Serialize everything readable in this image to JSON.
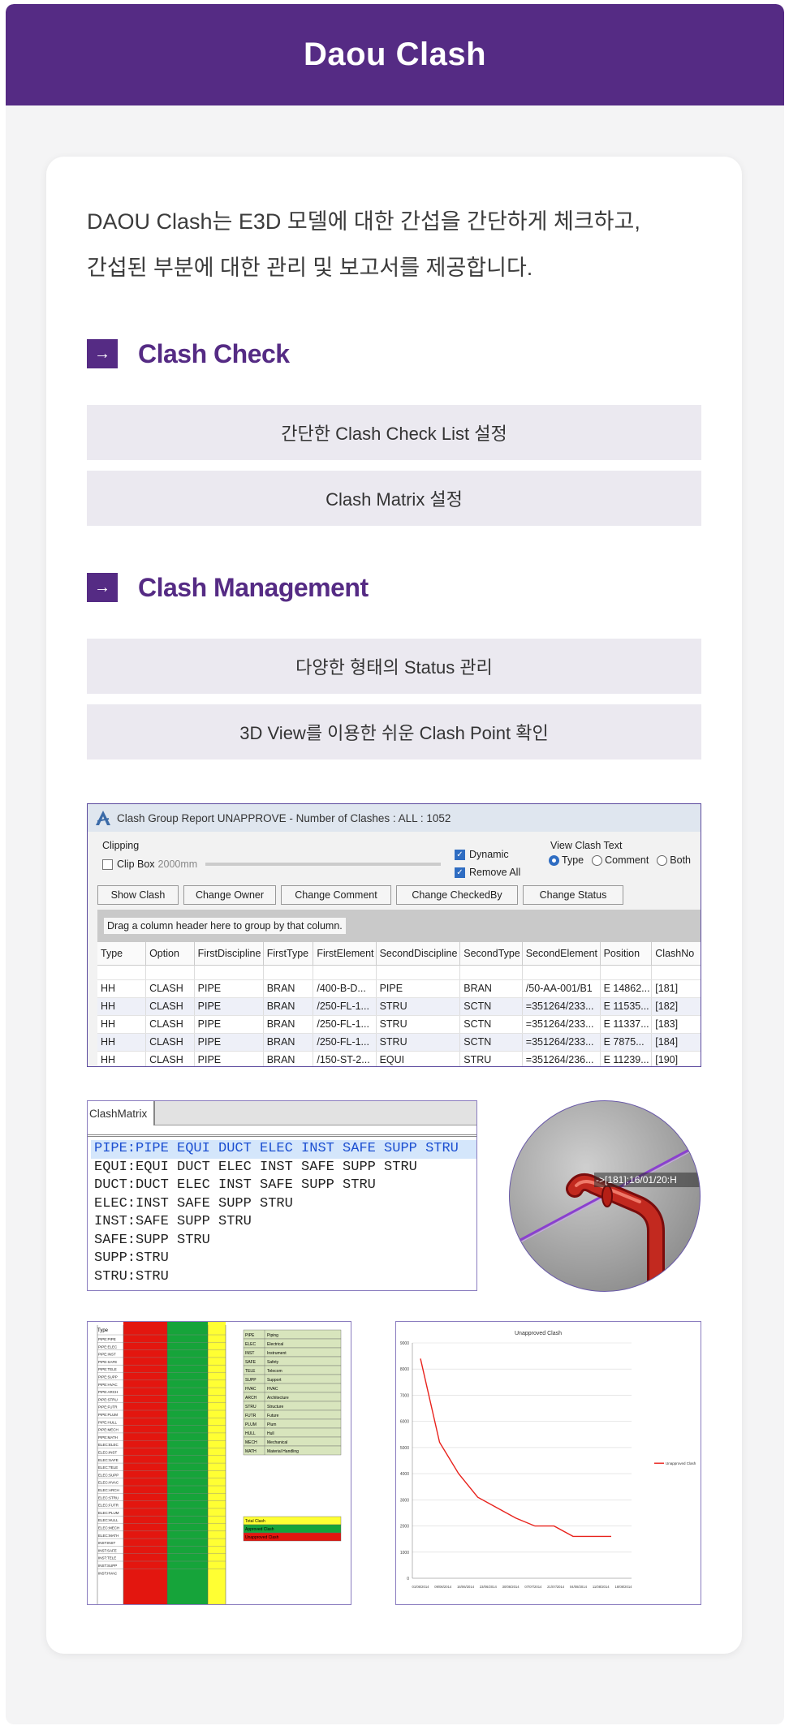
{
  "header": {
    "title": "Daou Clash"
  },
  "intro": {
    "line1": "DAOU Clash는 E3D 모델에 대한 간섭을 간단하게 체크하고,",
    "line2": "간섭된 부분에 대한 관리 및 보고서를 제공합니다."
  },
  "sections": [
    {
      "title": "Clash Check",
      "items": [
        "간단한 Clash Check List 설정",
        "Clash Matrix 설정"
      ]
    },
    {
      "title": "Clash Management",
      "items": [
        "다양한 형태의 Status 관리",
        "3D View를 이용한 쉬운 Clash Point 확인"
      ]
    }
  ],
  "arrow_icon": "→",
  "report": {
    "title": "Clash Group Report UNAPPROVE - Number of Clashes : ALL : 1052",
    "clipping_label": "Clipping",
    "clipbox_label": "Clip Box",
    "clipbox_value": "2000mm",
    "dynamic_label": "Dynamic",
    "remove_all_label": "Remove All",
    "view_clash_text_label": "View Clash Text",
    "radio_type": "Type",
    "radio_comment": "Comment",
    "radio_both": "Both",
    "buttons": [
      "Show Clash",
      "Change Owner",
      "Change Comment",
      "Change CheckedBy",
      "Change Status"
    ],
    "drag_hint": "Drag a column header here to group by that column.",
    "columns": [
      "Type",
      "Option",
      "FirstDiscipline",
      "FirstType",
      "FirstElement",
      "SecondDiscipline",
      "SecondType",
      "SecondElement",
      "Position",
      "ClashNo"
    ],
    "rows": [
      [
        "HH",
        "CLASH",
        "PIPE",
        "BRAN",
        "/400-B-D...",
        "PIPE",
        "BRAN",
        "/50-AA-001/B1",
        "E 14862...",
        "[181]"
      ],
      [
        "HH",
        "CLASH",
        "PIPE",
        "BRAN",
        "/250-FL-1...",
        "STRU",
        "SCTN",
        "=351264/233...",
        "E 11535...",
        "[182]"
      ],
      [
        "HH",
        "CLASH",
        "PIPE",
        "BRAN",
        "/250-FL-1...",
        "STRU",
        "SCTN",
        "=351264/233...",
        "E 11337...",
        "[183]"
      ],
      [
        "HH",
        "CLASH",
        "PIPE",
        "BRAN",
        "/250-FL-1...",
        "STRU",
        "SCTN",
        "=351264/233...",
        "E 7875...",
        "[184]"
      ],
      [
        "HH",
        "CLASH",
        "PIPE",
        "BRAN",
        "/150-ST-2...",
        "EQUI",
        "STRU",
        "=351264/236...",
        "E 11239...",
        "[190]"
      ]
    ]
  },
  "matrix": {
    "tab": "ClashMatrix",
    "lines": [
      "PIPE:PIPE EQUI DUCT ELEC INST SAFE SUPP STRU",
      "EQUI:EQUI DUCT ELEC INST SAFE SUPP STRU",
      "DUCT:DUCT ELEC INST SAFE SUPP STRU",
      "ELEC:INST SAFE SUPP STRU",
      "INST:SAFE SUPP STRU",
      "SAFE:SUPP STRU",
      "SUPP:STRU",
      "STRU:STRU"
    ]
  },
  "zoom": {
    "label": "->[181]:16/01/20:H"
  },
  "sheet": {
    "type_header": "Type",
    "rows": [
      "PIPE:PIPE",
      "PIPE:ELEC",
      "PIPE:INST",
      "PIPE:SAFE",
      "PIPE:TELE",
      "PIPE:SUPP",
      "PIPE:HVAC",
      "PIPE:ARCH",
      "PIPE:STRU",
      "PIPE:FUTR",
      "PIPE:PLUM",
      "PIPE:HULL",
      "PIPE:MECH",
      "PIPE:MATH",
      "ELEC:ELEC",
      "ELEC:INST",
      "ELEC:SAFE",
      "ELEC:TELE",
      "ELEC:SUPP",
      "ELEC:HVAC",
      "ELEC:ARCH",
      "ELEC:STRU",
      "ELEC:FUTR",
      "ELEC:PLUM",
      "ELEC:HULL",
      "ELEC:MECH",
      "ELEC:MATH",
      "INST:INST",
      "INST:SAFE",
      "INST:TELE",
      "INST:SUPP",
      "INST:HVAC"
    ],
    "legend": [
      [
        "PIPE",
        "Piping"
      ],
      [
        "ELEC",
        "Electrical"
      ],
      [
        "INST",
        "Instrument"
      ],
      [
        "SAFE",
        "Safety"
      ],
      [
        "TELE",
        "Telecom"
      ],
      [
        "SUPP",
        "Support"
      ],
      [
        "HVAC",
        "HVAC"
      ],
      [
        "ARCH",
        "Architecture"
      ],
      [
        "STRU",
        "Structure"
      ],
      [
        "FUTR",
        "Future"
      ],
      [
        "PLUM",
        "Plum"
      ],
      [
        "HULL",
        "Hull"
      ],
      [
        "MECH",
        "Mechanical"
      ],
      [
        "MATH",
        "Material Handling"
      ]
    ],
    "totals": [
      "Total Clash",
      "Approved Clash",
      "Unapproved Clash"
    ],
    "colors": {
      "red": "#e3160f",
      "green": "#16a43a",
      "yellow": "#ffff33",
      "legend": "#d8e5bd"
    }
  },
  "chart_data": {
    "type": "line",
    "title": "Unapproved Clash",
    "x": [
      "01/06/2014",
      "05/06/2014",
      "09/06/2014",
      "13/06/2014",
      "17/06/2014",
      "21/06/2014",
      "25/06/2014",
      "29/06/2014",
      "03/07/2014",
      "07/07/2014",
      "11/07/2014"
    ],
    "x_ticks": [
      "01/06/2014",
      "09/06/2014",
      "16/06/2014",
      "23/06/2014",
      "30/06/2014",
      "07/07/2014",
      "21/07/2014",
      "04/08/2014",
      "11/08/2014",
      "18/08/2014"
    ],
    "series": [
      {
        "name": "Unapproved Clash",
        "values": [
          8400,
          5200,
          4000,
          3100,
          2700,
          2300,
          2000,
          2000,
          1600,
          1600,
          1600
        ]
      }
    ],
    "ylim": [
      0,
      9000
    ],
    "y_ticks": [
      0,
      1000,
      2000,
      3000,
      4000,
      5000,
      6000,
      7000,
      8000,
      9000
    ],
    "legend_position": "right",
    "color": "#e8231d"
  }
}
